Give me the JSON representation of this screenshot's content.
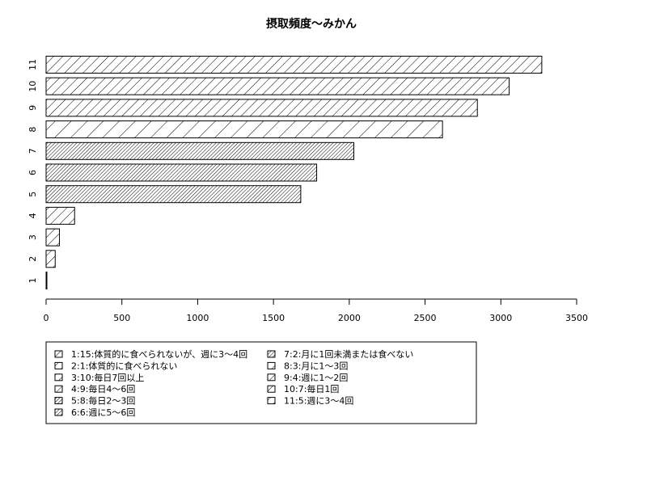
{
  "chart_data": {
    "type": "bar",
    "orientation": "horizontal",
    "title": "摂取頻度〜みかん",
    "xlabel": "",
    "ylabel": "",
    "categories": [
      "1",
      "2",
      "3",
      "4",
      "5",
      "6",
      "7",
      "8",
      "9",
      "10",
      "11"
    ],
    "values": [
      3,
      60,
      88,
      188,
      1680,
      1785,
      2030,
      2615,
      2845,
      3055,
      3270
    ],
    "xlim": [
      0,
      3500
    ],
    "xticks": [
      0,
      500,
      1000,
      1500,
      2000,
      2500,
      3000,
      3500
    ],
    "bar_style": "hatched",
    "grid": false,
    "legend": {
      "placement": "bottom",
      "columns": [
        [
          "1:15:体質的に食べられないが、週に3〜4回",
          "2:1:体質的に食べられない",
          "3:10:毎日7回以上",
          "4:9:毎日4〜6回",
          "5:8:毎日2〜3回",
          "6:6:週に5〜6回"
        ],
        [
          "7:2:月に1回未満または食べない",
          "8:3:月に1〜3回",
          "9:4:週に1〜2回",
          "10:7:毎日1回",
          "11:5:週に3〜4回"
        ]
      ]
    }
  }
}
